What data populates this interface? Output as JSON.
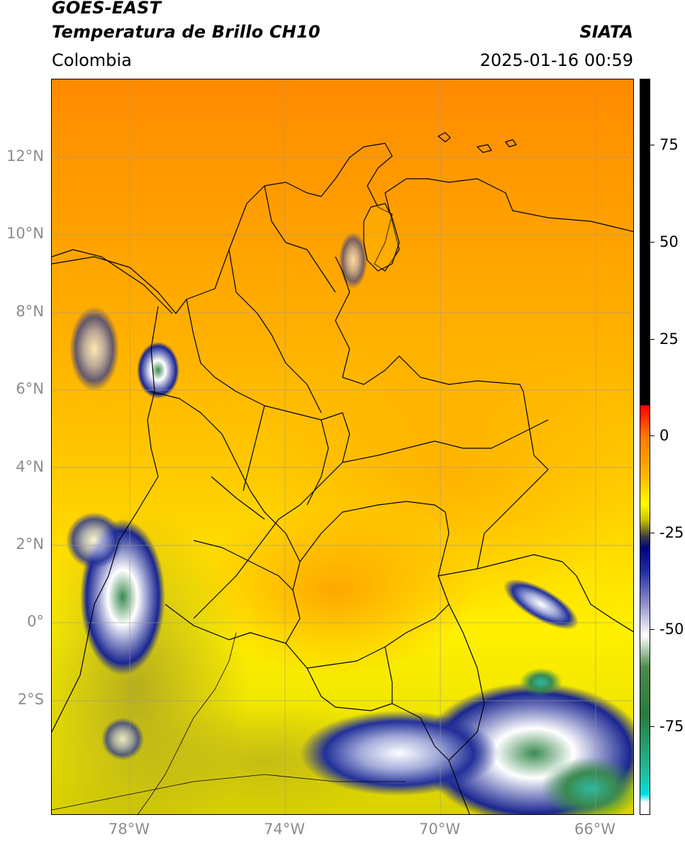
{
  "header": {
    "satellite": "GOES-EAST",
    "product": "Temperatura de Brillo CH10",
    "source": "SIATA",
    "region": "Colombia",
    "datetime": "2025-01-16 00:59"
  },
  "map": {
    "lat_labels": [
      "12°N",
      "10°N",
      "8°N",
      "6°N",
      "4°N",
      "2°N",
      "0°",
      "2°S"
    ],
    "lat_values": [
      12,
      10,
      8,
      6,
      4,
      2,
      0,
      -2
    ],
    "lon_labels": [
      "78°W",
      "74°W",
      "70°W",
      "66°W"
    ],
    "lon_values": [
      -78,
      -74,
      -70,
      -66
    ],
    "extent": {
      "lon_min": -80,
      "lon_max": -65,
      "lat_min": -5,
      "lat_max": 14
    }
  },
  "colorbar": {
    "tick_labels": [
      "75",
      "50",
      "25",
      "0",
      "-25",
      "-50",
      "-75"
    ],
    "tick_values": [
      75,
      50,
      25,
      0,
      -25,
      -50,
      -75
    ],
    "range": [
      -95,
      90
    ],
    "stops": [
      {
        "value": 90,
        "color": "#000000"
      },
      {
        "value": 8,
        "color": "#000000"
      },
      {
        "value": 7.9,
        "color": "#ff0000"
      },
      {
        "value": 0,
        "color": "#ff7a00"
      },
      {
        "value": -10,
        "color": "#ffb800"
      },
      {
        "value": -17,
        "color": "#ffff00"
      },
      {
        "value": -21,
        "color": "#c8c000"
      },
      {
        "value": -25,
        "color": "#404040"
      },
      {
        "value": -28,
        "color": "#000080"
      },
      {
        "value": -34,
        "color": "#2030a0"
      },
      {
        "value": -42,
        "color": "#9090c8"
      },
      {
        "value": -50,
        "color": "#ffffff"
      },
      {
        "value": -58,
        "color": "#4c8a4c"
      },
      {
        "value": -70,
        "color": "#2a7a3a"
      },
      {
        "value": -85,
        "color": "#20c0a0"
      },
      {
        "value": -90,
        "color": "#00e0e0"
      },
      {
        "value": -92,
        "color": "#ffffff"
      },
      {
        "value": -95,
        "color": "#ffffff"
      }
    ]
  }
}
